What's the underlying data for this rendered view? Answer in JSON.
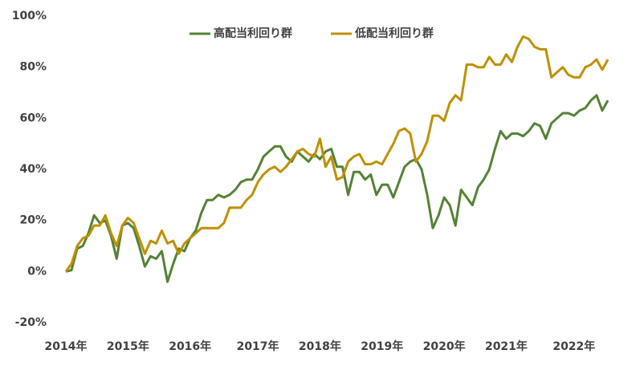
{
  "chart_data": {
    "type": "line",
    "categories": [
      "2014年",
      null,
      null,
      null,
      null,
      null,
      null,
      null,
      null,
      null,
      null,
      "2015年",
      null,
      null,
      null,
      null,
      null,
      null,
      null,
      null,
      null,
      null,
      "2016年",
      null,
      null,
      null,
      null,
      null,
      null,
      null,
      null,
      null,
      null,
      null,
      "2017年",
      null,
      null,
      null,
      null,
      null,
      null,
      null,
      null,
      null,
      null,
      "2018年",
      null,
      null,
      null,
      null,
      null,
      null,
      null,
      null,
      null,
      null,
      "2019年",
      null,
      null,
      null,
      null,
      null,
      null,
      null,
      null,
      null,
      null,
      "2020年",
      null,
      null,
      null,
      null,
      null,
      null,
      null,
      null,
      null,
      null,
      "2021年",
      null,
      null,
      null,
      null,
      null,
      null,
      null,
      null,
      null,
      null,
      null,
      "2022年",
      null,
      null,
      null,
      null,
      null,
      null
    ],
    "series": [
      {
        "name": "高配当利回り群",
        "color": "#548235",
        "values": [
          0,
          0.5,
          9,
          10,
          15,
          22,
          19,
          20,
          14,
          5,
          18,
          19,
          17,
          10,
          2,
          6,
          5,
          8,
          -4,
          3,
          9,
          8,
          13,
          16,
          23,
          28,
          28,
          30,
          29,
          30,
          32,
          35,
          36,
          36,
          40,
          45,
          47,
          49,
          49,
          45,
          43,
          47,
          45,
          43,
          46,
          44,
          47,
          48,
          41,
          41,
          30,
          39,
          39,
          36,
          38,
          30,
          34,
          34,
          29,
          35,
          41,
          43,
          44,
          40,
          30,
          17,
          22,
          29,
          26,
          18,
          32,
          29,
          26,
          33,
          36,
          40,
          48,
          55,
          52,
          54,
          54,
          53,
          55,
          58,
          57,
          52,
          58,
          60,
          62,
          62,
          61,
          63,
          64,
          67,
          69,
          63,
          67
        ]
      },
      {
        "name": "低配当利回り群",
        "color": "#bf9000",
        "values": [
          0,
          3,
          10,
          13,
          14,
          18,
          18,
          22,
          15,
          10,
          18,
          21,
          19,
          13,
          7,
          12,
          11,
          16,
          11,
          12,
          7,
          11,
          13,
          15,
          17,
          17,
          17,
          17,
          19,
          25,
          25,
          25,
          28,
          30,
          35,
          38,
          40,
          41,
          39,
          41,
          44,
          47,
          48,
          46,
          45,
          52,
          41,
          45,
          36,
          37,
          43,
          45,
          46,
          42,
          42,
          43,
          42,
          46,
          50,
          55,
          56,
          54,
          43,
          46,
          51,
          61,
          61,
          59,
          66,
          69,
          67,
          81,
          81,
          80,
          80,
          84,
          81,
          81,
          85,
          82,
          88,
          92,
          91,
          88,
          87,
          87,
          76,
          78,
          80,
          77,
          76,
          76,
          80,
          81,
          83,
          79,
          83
        ]
      }
    ],
    "ylim": [
      -20,
      100
    ],
    "yticks": [
      {
        "value": -20,
        "label": "-20%"
      },
      {
        "value": 0,
        "label": "0%"
      },
      {
        "value": 20,
        "label": "20%"
      },
      {
        "value": 40,
        "label": "40%"
      },
      {
        "value": 60,
        "label": "60%"
      },
      {
        "value": 80,
        "label": "80%"
      },
      {
        "value": 100,
        "label": "100%"
      }
    ],
    "grid": false,
    "legend": "top"
  }
}
